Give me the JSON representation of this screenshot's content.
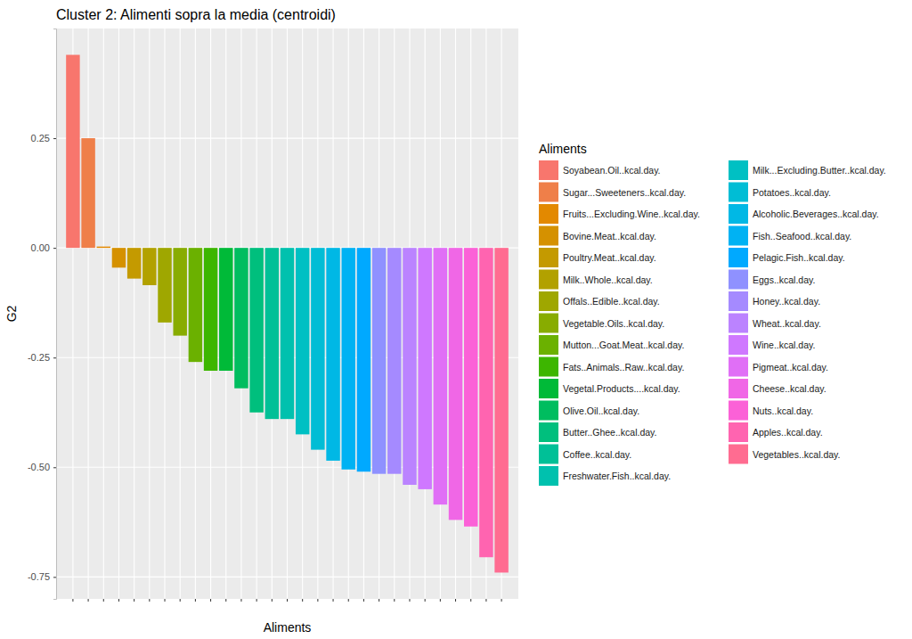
{
  "chart_data": {
    "type": "bar",
    "title": "Cluster 2: Alimenti sopra la media (centroidi)",
    "x_label": "Aliments",
    "y_label": "G2",
    "legend_title": "Aliments",
    "categories": [
      "Soyabean.Oil..kcal.day.",
      "Sugar...Sweeteners..kcal.day.",
      "Fruits...Excluding.Wine..kcal.day.",
      "Bovine.Meat..kcal.day.",
      "Poultry.Meat..kcal.day.",
      "Milk..Whole..kcal.day.",
      "Offals..Edible..kcal.day.",
      "Vegetable.Oils..kcal.day.",
      "Mutton...Goat.Meat..kcal.day.",
      "Fats..Animals..Raw..kcal.day.",
      "Vegetal.Products....kcal.day.",
      "Olive.Oil..kcal.day.",
      "Butter..Ghee..kcal.day.",
      "Coffee..kcal.day.",
      "Freshwater.Fish..kcal.day.",
      "Milk...Excluding.Butter..kcal.day.",
      "Potatoes..kcal.day.",
      "Alcoholic.Beverages..kcal.day.",
      "Fish..Seafood..kcal.day.",
      "Pelagic.Fish..kcal.day.",
      "Eggs..kcal.day.",
      "Honey..kcal.day.",
      "Wheat..kcal.day.",
      "Wine..kcal.day.",
      "Pigmeat..kcal.day.",
      "Cheese..kcal.day.",
      "Nuts..kcal.day.",
      "Apples..kcal.day.",
      "Vegetables..kcal.day."
    ],
    "values": [
      0.44,
      0.25,
      0.003,
      -0.045,
      -0.07,
      -0.085,
      -0.17,
      -0.2,
      -0.26,
      -0.28,
      -0.28,
      -0.32,
      -0.375,
      -0.39,
      -0.39,
      -0.425,
      -0.46,
      -0.485,
      -0.505,
      -0.51,
      -0.515,
      -0.515,
      -0.54,
      -0.55,
      -0.585,
      -0.62,
      -0.635,
      -0.705,
      -0.74
    ],
    "colors": [
      "#F8766D",
      "#EF7F49",
      "#E38900",
      "#D59100",
      "#C49A00",
      "#B2A100",
      "#9FA700",
      "#88AC00",
      "#6BB100",
      "#3DB600",
      "#00BA38",
      "#00BD5F",
      "#00BF7D",
      "#00C097",
      "#00C1AE",
      "#00C0C3",
      "#00BDD5",
      "#00B8E5",
      "#00B2F3",
      "#00A9FF",
      "#8F91FF",
      "#A58AFF",
      "#BB83FF",
      "#CF78FF",
      "#E06FF6",
      "#F067E6",
      "#FB61D7",
      "#FF64B0",
      "#FF6C91"
    ],
    "ylim": [
      -0.8,
      0.5
    ],
    "yticks": [
      {
        "value": -0.75,
        "label": "-0.75"
      },
      {
        "value": -0.5,
        "label": "-0.50"
      },
      {
        "value": -0.25,
        "label": "-0.25"
      },
      {
        "value": 0,
        "label": "0.00"
      },
      {
        "value": 0.25,
        "label": "0.25"
      }
    ],
    "grid": true,
    "tick_labels": "y"
  }
}
